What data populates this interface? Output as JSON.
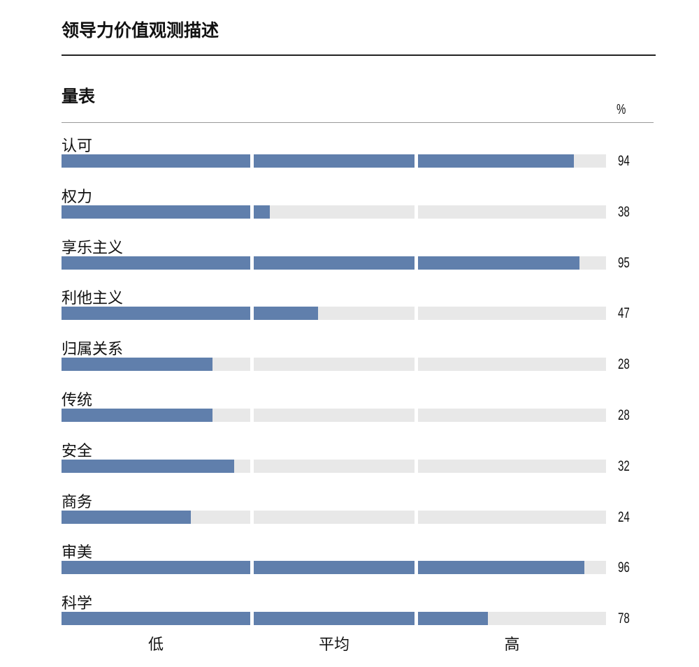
{
  "title": "领导力价值观测描述",
  "subtitle": "量表",
  "unit": "%",
  "chart_data": {
    "type": "bar",
    "orientation": "horizontal",
    "categories": [
      "认可",
      "权力",
      "享乐主义",
      "利他主义",
      "归属关系",
      "传统",
      "安全",
      "商务",
      "审美",
      "科学"
    ],
    "values": [
      94,
      38,
      95,
      47,
      28,
      28,
      32,
      24,
      96,
      78
    ],
    "bands": [
      {
        "label": "低",
        "range": [
          0,
          35
        ]
      },
      {
        "label": "平均",
        "range": [
          35,
          65
        ]
      },
      {
        "label": "高",
        "range": [
          65,
          100
        ]
      }
    ],
    "xlim": [
      0,
      100
    ],
    "colors": {
      "fill": "#607fac",
      "track": "#e8e8e8"
    }
  }
}
